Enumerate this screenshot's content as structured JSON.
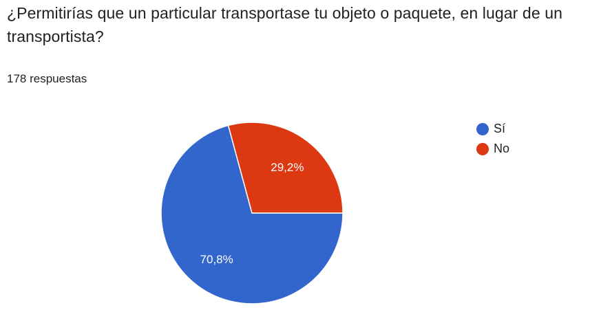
{
  "question": {
    "title": "¿Permitirías que un particular transportase tu objeto o paquete, en lugar de un transportista?",
    "response_count": "178 respuestas"
  },
  "chart_data": {
    "type": "pie",
    "categories": [
      "Sí",
      "No"
    ],
    "values": [
      70.8,
      29.2
    ],
    "labels": [
      "70,8%",
      "29,2%"
    ],
    "colors": [
      "#3366cc",
      "#dc3912"
    ],
    "legend_position": "top-right"
  }
}
